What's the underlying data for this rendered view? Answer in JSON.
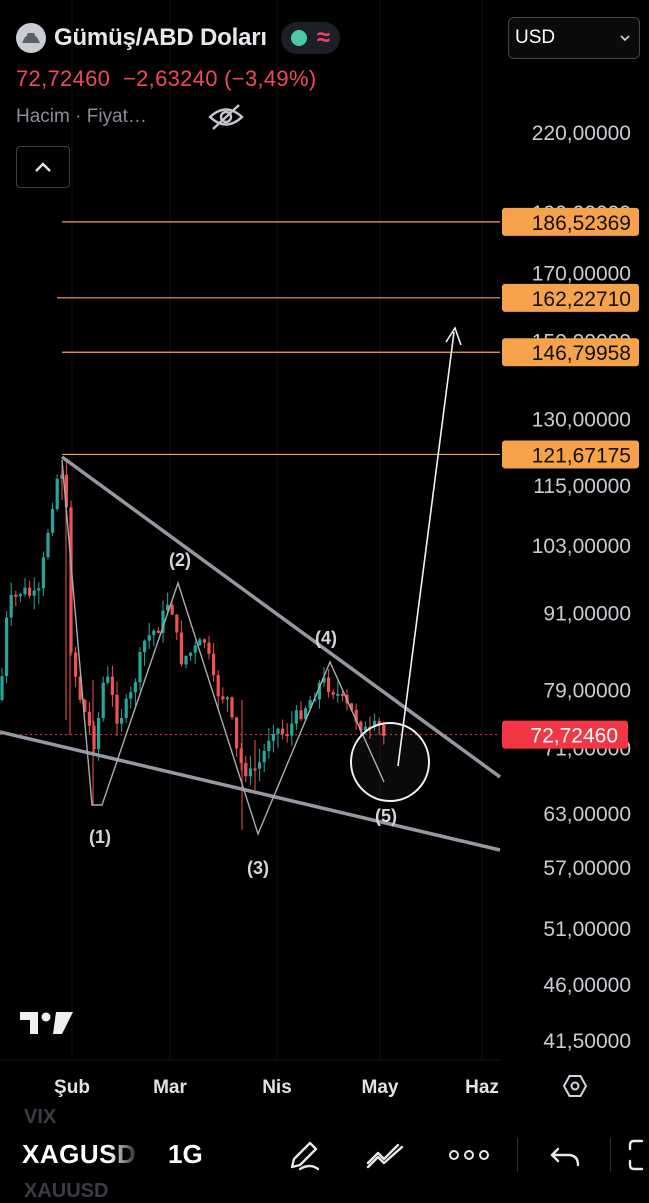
{
  "header": {
    "symbol_name": "Gümüş/ABD Doları",
    "currency": "USD",
    "price_text": "72,72460  −2,63240 (−3,49%)",
    "indicators_label": "Hacim · Fiyat…"
  },
  "icons": {
    "logo": "silver-bars-icon",
    "market_status": "market-open-dot-icon",
    "delay": "delayed-data-wave-icon",
    "hide": "eye-off-icon",
    "collapse": "chevron-up-icon",
    "drawing": "pen-icon",
    "indicators": "indicators-icon",
    "more": "ellipsis-icon",
    "undo": "undo-icon",
    "settings": "hexagon-settings-icon",
    "fullscreen": "fullscreen-icon"
  },
  "colors": {
    "up": "#26a69a",
    "down": "#ef5350",
    "level": "#f5a24a",
    "last_price": "#f23645",
    "trendline": "#9598a1"
  },
  "bottom": {
    "ticker": "XAGUSD",
    "interval": "1G",
    "ghost_above": "VIX",
    "ghost_below": "XAUUSD"
  },
  "chart_data": {
    "type": "candlestick",
    "ylim": [
      40,
      240
    ],
    "y_ticks": [
      "220,00000",
      "190,00000",
      "170,00000",
      "150,00000",
      "130,00000",
      "115,00000",
      "103,00000",
      "91,00000",
      "79,00000",
      "71,00000",
      "63,00000",
      "57,00000",
      "51,00000",
      "46,00000",
      "41,50000"
    ],
    "x_ticks": [
      "Şub",
      "Mar",
      "Nis",
      "May",
      "Haz"
    ],
    "last_price": {
      "value": 72.7246,
      "label": "72,72460"
    },
    "levels": [
      {
        "value": 186.52369,
        "label": "186,52369"
      },
      {
        "value": 162.2271,
        "label": "162,22710"
      },
      {
        "value": 146.79958,
        "label": "146,79958"
      },
      {
        "value": 121.67175,
        "label": "121,67175"
      }
    ],
    "wave_labels": [
      "(1)",
      "(2)",
      "(3)",
      "(4)",
      "(5)"
    ],
    "approx_prices": {
      "jan_start": 74,
      "late_jan_peak": 121.5,
      "feb_low_1": 64,
      "mar_peak_2": 97,
      "mar_low_3": 61,
      "apr_peak_4": 82,
      "last": 72.72
    }
  }
}
